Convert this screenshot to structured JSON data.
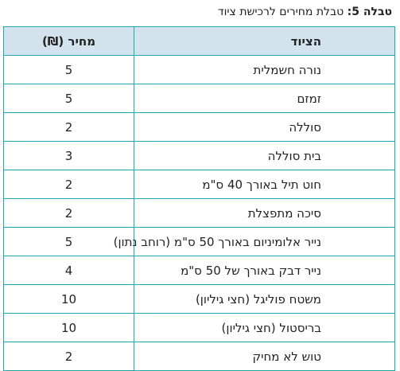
{
  "caption": {
    "prefix": "טבלה 5:",
    "text": " טבלת מחירים לרכישת ציוד"
  },
  "table": {
    "headers": {
      "item": "הציוד",
      "price": "מחיר (₪)"
    },
    "rows": [
      {
        "item": "נורה חשמלית",
        "price": "5"
      },
      {
        "item": "זמזם",
        "price": "5"
      },
      {
        "item": "סוללה",
        "price": "2"
      },
      {
        "item": "בית סוללה",
        "price": "3"
      },
      {
        "item": "חוט תיל באורך 40 ס\"מ",
        "price": "2"
      },
      {
        "item": "סיכה מתפצלת",
        "price": "2"
      },
      {
        "item": "נייר אלומיניום באורך 50 ס\"מ (רוחב נתון)",
        "price": "5"
      },
      {
        "item": "נייר דבק באורך של 50 ס\"מ",
        "price": "4"
      },
      {
        "item": "משטח פוליגל (חצי גיליון)",
        "price": "10"
      },
      {
        "item": "בריסטול (חצי גיליון)",
        "price": "10"
      },
      {
        "item": "טוש לא מחיק",
        "price": "2"
      }
    ]
  },
  "colors": {
    "border": "#1fa8b3",
    "header_background": "#d2e3ee"
  }
}
